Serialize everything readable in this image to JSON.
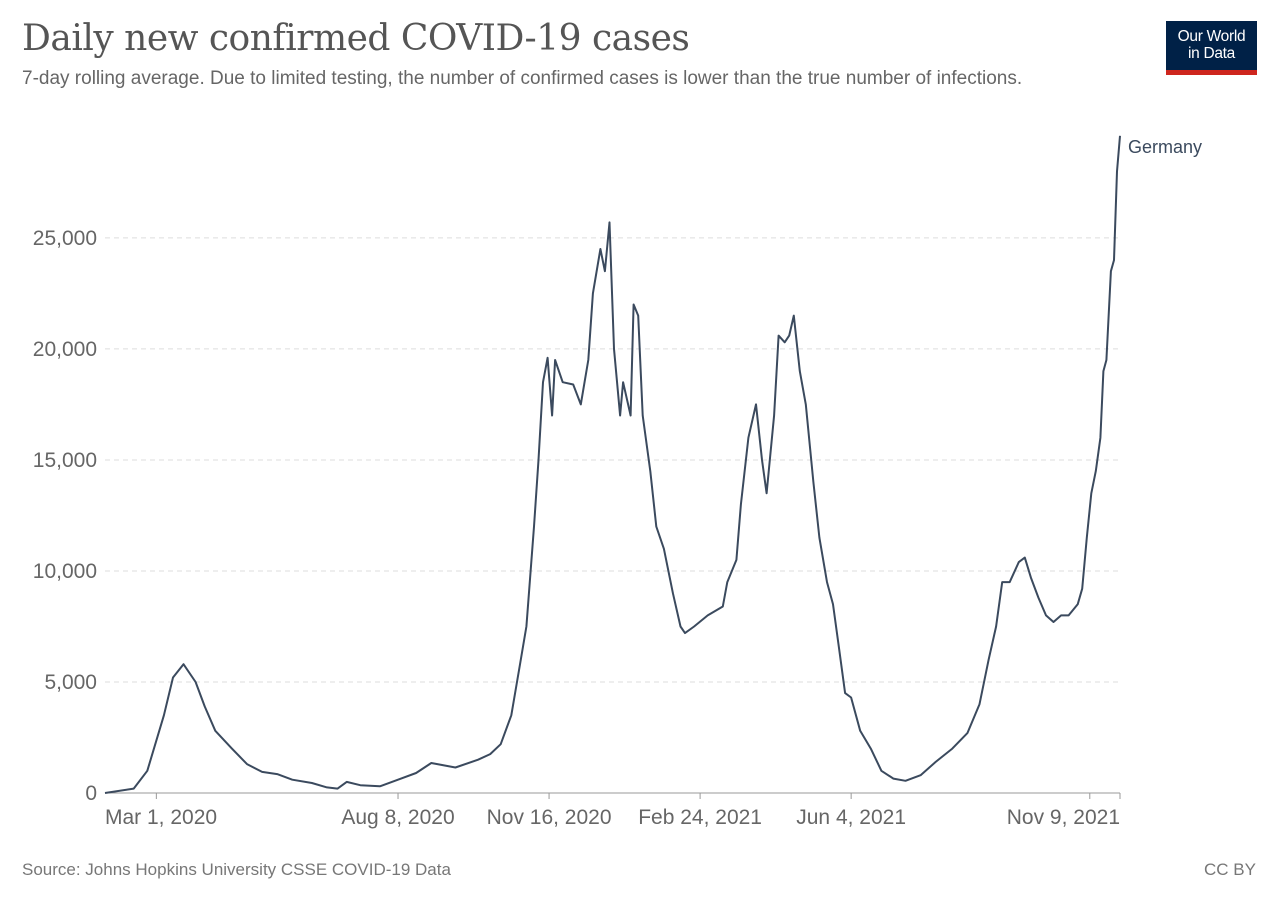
{
  "header": {
    "title": "Daily new confirmed COVID-19 cases",
    "subtitle": "7-day rolling average. Due to limited testing, the number of confirmed cases is lower than the true number of infections."
  },
  "logo": {
    "line1": "Our World",
    "line2": "in Data"
  },
  "footer": {
    "source": "Source: Johns Hopkins University CSSE COVID-19 Data",
    "license": "CC BY"
  },
  "colors": {
    "line": "#3b4a5e",
    "grid": "#dddddd",
    "axis_text": "#666666",
    "logo_bg": "#002147",
    "logo_accent": "#ce261e"
  },
  "chart_data": {
    "type": "line",
    "title": "Daily new confirmed COVID-19 cases",
    "ylim": [
      0,
      29500
    ],
    "y_ticks": [
      {
        "value": 0,
        "label": "0"
      },
      {
        "value": 5000,
        "label": "5,000"
      },
      {
        "value": 10000,
        "label": "10,000"
      },
      {
        "value": 15000,
        "label": "15,000"
      },
      {
        "value": 20000,
        "label": "20,000"
      },
      {
        "value": 25000,
        "label": "25,000"
      }
    ],
    "x_ticks": [
      {
        "date": "2020-03-01",
        "label": "Mar 1, 2020"
      },
      {
        "date": "2020-08-08",
        "label": "Aug 8, 2020"
      },
      {
        "date": "2020-11-16",
        "label": "Nov 16, 2020"
      },
      {
        "date": "2021-02-24",
        "label": "Feb 24, 2021"
      },
      {
        "date": "2021-06-04",
        "label": "Jun 4, 2021"
      },
      {
        "date": "2021-11-09",
        "label": "Nov 9, 2021"
      }
    ],
    "grid": true,
    "series": [
      {
        "name": "Germany",
        "points": [
          [
            "2020-01-27",
            0
          ],
          [
            "2020-02-15",
            200
          ],
          [
            "2020-02-24",
            1000
          ],
          [
            "2020-03-06",
            3500
          ],
          [
            "2020-03-12",
            5200
          ],
          [
            "2020-03-19",
            5800
          ],
          [
            "2020-03-27",
            5000
          ],
          [
            "2020-04-02",
            3900
          ],
          [
            "2020-04-09",
            2800
          ],
          [
            "2020-04-20",
            2000
          ],
          [
            "2020-04-30",
            1300
          ],
          [
            "2020-05-10",
            950
          ],
          [
            "2020-05-20",
            850
          ],
          [
            "2020-05-30",
            600
          ],
          [
            "2020-06-12",
            450
          ],
          [
            "2020-06-22",
            250
          ],
          [
            "2020-06-29",
            200
          ],
          [
            "2020-07-05",
            500
          ],
          [
            "2020-07-14",
            350
          ],
          [
            "2020-07-27",
            300
          ],
          [
            "2020-08-08",
            600
          ],
          [
            "2020-08-20",
            900
          ],
          [
            "2020-08-30",
            1350
          ],
          [
            "2020-09-15",
            1150
          ],
          [
            "2020-09-30",
            1500
          ],
          [
            "2020-10-08",
            1750
          ],
          [
            "2020-10-15",
            2200
          ],
          [
            "2020-10-22",
            3500
          ],
          [
            "2020-10-28",
            5900
          ],
          [
            "2020-11-01",
            7500
          ],
          [
            "2020-11-06",
            12000
          ],
          [
            "2020-11-09",
            15000
          ],
          [
            "2020-11-12",
            18500
          ],
          [
            "2020-11-15",
            19600
          ],
          [
            "2020-11-18",
            17000
          ],
          [
            "2020-11-20",
            19500
          ],
          [
            "2020-11-25",
            18500
          ],
          [
            "2020-12-02",
            18400
          ],
          [
            "2020-12-07",
            17500
          ],
          [
            "2020-12-12",
            19500
          ],
          [
            "2020-12-15",
            22500
          ],
          [
            "2020-12-20",
            24500
          ],
          [
            "2020-12-23",
            23500
          ],
          [
            "2020-12-26",
            25700
          ],
          [
            "2020-12-29",
            20000
          ],
          [
            "2021-01-02",
            17000
          ],
          [
            "2021-01-04",
            18500
          ],
          [
            "2021-01-09",
            17000
          ],
          [
            "2021-01-11",
            22000
          ],
          [
            "2021-01-14",
            21500
          ],
          [
            "2021-01-17",
            17000
          ],
          [
            "2021-01-22",
            14500
          ],
          [
            "2021-01-26",
            12000
          ],
          [
            "2021-01-31",
            11000
          ],
          [
            "2021-02-06",
            9000
          ],
          [
            "2021-02-11",
            7500
          ],
          [
            "2021-02-14",
            7200
          ],
          [
            "2021-02-20",
            7500
          ],
          [
            "2021-03-01",
            8000
          ],
          [
            "2021-03-11",
            8400
          ],
          [
            "2021-03-14",
            9500
          ],
          [
            "2021-03-20",
            10500
          ],
          [
            "2021-03-23",
            13000
          ],
          [
            "2021-03-28",
            16000
          ],
          [
            "2021-04-02",
            17500
          ],
          [
            "2021-04-06",
            15000
          ],
          [
            "2021-04-09",
            13500
          ],
          [
            "2021-04-14",
            17000
          ],
          [
            "2021-04-17",
            20600
          ],
          [
            "2021-04-21",
            20300
          ],
          [
            "2021-04-24",
            20600
          ],
          [
            "2021-04-27",
            21500
          ],
          [
            "2021-05-01",
            19000
          ],
          [
            "2021-05-05",
            17500
          ],
          [
            "2021-05-10",
            14000
          ],
          [
            "2021-05-14",
            11500
          ],
          [
            "2021-05-19",
            9500
          ],
          [
            "2021-05-23",
            8500
          ],
          [
            "2021-05-27",
            6500
          ],
          [
            "2021-05-31",
            4500
          ],
          [
            "2021-06-04",
            4300
          ],
          [
            "2021-06-10",
            2800
          ],
          [
            "2021-06-17",
            2000
          ],
          [
            "2021-06-24",
            1000
          ],
          [
            "2021-07-02",
            650
          ],
          [
            "2021-07-10",
            550
          ],
          [
            "2021-07-20",
            800
          ],
          [
            "2021-07-30",
            1400
          ],
          [
            "2021-08-10",
            2000
          ],
          [
            "2021-08-20",
            2700
          ],
          [
            "2021-08-28",
            4000
          ],
          [
            "2021-09-03",
            6000
          ],
          [
            "2021-09-08",
            7500
          ],
          [
            "2021-09-12",
            9500
          ],
          [
            "2021-09-17",
            9500
          ],
          [
            "2021-09-23",
            10400
          ],
          [
            "2021-09-27",
            10600
          ],
          [
            "2021-10-01",
            9700
          ],
          [
            "2021-10-06",
            8800
          ],
          [
            "2021-10-11",
            8000
          ],
          [
            "2021-10-16",
            7700
          ],
          [
            "2021-10-21",
            8000
          ],
          [
            "2021-10-26",
            8000
          ],
          [
            "2021-11-01",
            8500
          ],
          [
            "2021-11-04",
            9200
          ],
          [
            "2021-11-07",
            11500
          ],
          [
            "2021-11-10",
            13500
          ],
          [
            "2021-11-13",
            14500
          ],
          [
            "2021-11-16",
            16000
          ],
          [
            "2021-11-18",
            19000
          ],
          [
            "2021-11-20",
            19500
          ],
          [
            "2021-11-23",
            23500
          ],
          [
            "2021-11-25",
            24000
          ],
          [
            "2021-11-27",
            28000
          ],
          [
            "2021-11-29",
            29600
          ]
        ]
      }
    ]
  }
}
